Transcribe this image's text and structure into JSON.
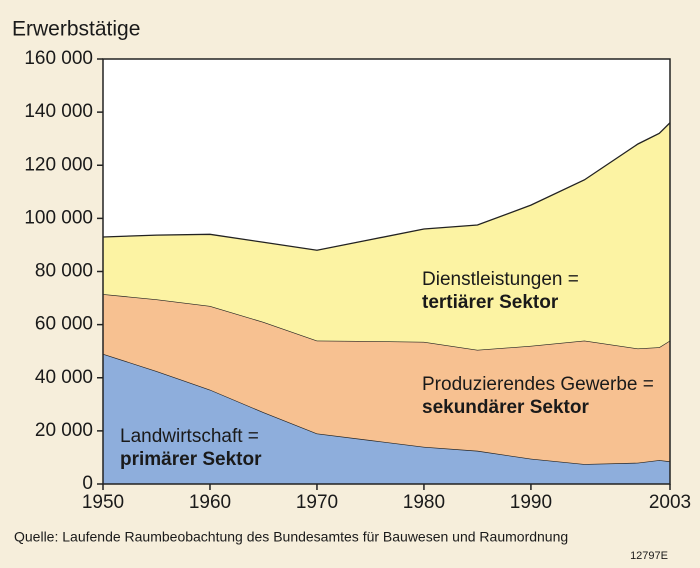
{
  "chart_data": {
    "type": "stacked-area",
    "title": "Erwerbstätige",
    "source": "Quelle: Laufende Raumbeobachtung des Bundesamtes für Bauwesen und Raumordnung",
    "code": "12797E",
    "x": [
      1950,
      1955,
      1960,
      1965,
      1970,
      1975,
      1980,
      1985,
      1990,
      1995,
      2000,
      2002,
      2003
    ],
    "series": [
      {
        "name": "Landwirtschaft =",
        "sector": "primärer Sektor",
        "color": "#8eaedc",
        "values": [
          49000,
          42500,
          35500,
          27000,
          19000,
          16500,
          14000,
          12500,
          9500,
          7500,
          8000,
          9000,
          8500
        ]
      },
      {
        "name": "Produzierendes Gewerbe =",
        "sector": "sekundärer Sektor",
        "color": "#f7c191",
        "values": [
          22500,
          27000,
          31500,
          34000,
          35000,
          37300,
          39500,
          38000,
          42500,
          46500,
          43000,
          42500,
          45500
        ]
      },
      {
        "name": "Dienstleistungen =",
        "sector": "tertiärer Sektor",
        "color": "#fcf3a3",
        "values": [
          21500,
          24200,
          27000,
          30000,
          34000,
          38200,
          42500,
          47000,
          53000,
          60500,
          77000,
          80500,
          82000
        ]
      }
    ],
    "xlim": [
      1950,
      2003
    ],
    "xticks": [
      1950,
      1960,
      1970,
      1980,
      1990,
      2003
    ],
    "ylim": [
      0,
      160000
    ],
    "yticks": [
      0,
      {
        "value": 20000,
        "label": "20 000"
      },
      {
        "value": 40000,
        "label": "40 000"
      },
      {
        "value": 60000,
        "label": "60 000"
      },
      {
        "value": 80000,
        "label": "80 000"
      },
      {
        "value": 100000,
        "label": "100 000"
      },
      {
        "value": 120000,
        "label": "120 000"
      },
      {
        "value": 140000,
        "label": "140 000"
      },
      {
        "value": 160000,
        "label": "160 000"
      }
    ]
  }
}
